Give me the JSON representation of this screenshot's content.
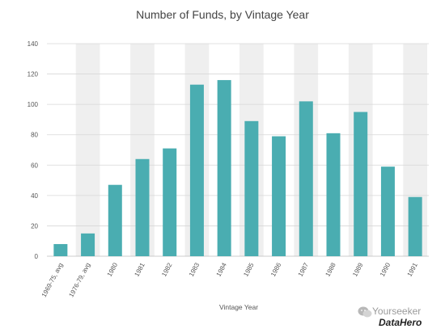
{
  "chart_data": {
    "type": "bar",
    "title": "Number of Funds, by Vintage Year",
    "xlabel": "Vintage Year",
    "ylabel": "",
    "ylim": [
      0,
      140
    ],
    "yticks": [
      "0",
      "20",
      "40",
      "60",
      "80",
      "100",
      "120",
      "140"
    ],
    "categories": [
      "1969-75, avg",
      "1976-79, avg",
      "1980",
      "1981",
      "1982",
      "1983",
      "1984",
      "1985",
      "1986",
      "1987",
      "1988",
      "1989",
      "1990",
      "1991"
    ],
    "values": [
      8,
      15,
      47,
      64,
      71,
      113,
      116,
      89,
      79,
      102,
      81,
      95,
      59,
      39
    ],
    "grid": true,
    "bar_color": "#4aadb1",
    "band_color": "#efefef"
  },
  "watermark": {
    "line1": "Yourseeker",
    "line2": "DataHero"
  }
}
